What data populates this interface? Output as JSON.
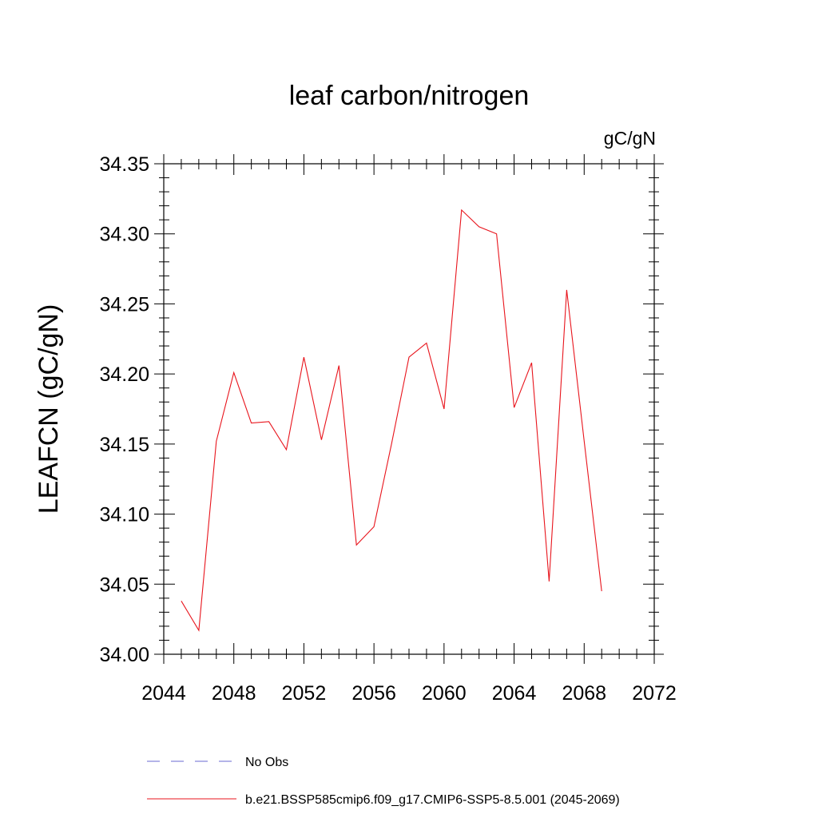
{
  "chart_data": {
    "type": "line",
    "title": "leaf carbon/nitrogen",
    "units_label": "gC/gN",
    "ylabel": "LEAFCN  (gC/gN)",
    "xlabel": "",
    "xlim": [
      2044,
      2072
    ],
    "ylim": [
      34.0,
      34.35
    ],
    "x_ticks": [
      2044,
      2048,
      2052,
      2056,
      2060,
      2064,
      2068,
      2072
    ],
    "x_tick_labels": [
      "2044",
      "2048",
      "2052",
      "2056",
      "2060",
      "2064",
      "2068",
      "2072"
    ],
    "y_ticks": [
      34.0,
      34.05,
      34.1,
      34.15,
      34.2,
      34.25,
      34.3,
      34.35
    ],
    "y_tick_labels": [
      "34.00",
      "34.05",
      "34.10",
      "34.15",
      "34.20",
      "34.25",
      "34.30",
      "34.35"
    ],
    "grid": false,
    "series": [
      {
        "name": "b.e21.BSSP585cmip6.f09_g17.CMIP6-SSP5-8.5.001 (2045-2069)",
        "color": "#e8141c",
        "x": [
          2045,
          2046,
          2047,
          2048,
          2049,
          2050,
          2051,
          2052,
          2053,
          2054,
          2055,
          2056,
          2057,
          2058,
          2059,
          2060,
          2061,
          2062,
          2063,
          2064,
          2065,
          2066,
          2067,
          2068,
          2069
        ],
        "y": [
          34.038,
          34.017,
          34.152,
          34.201,
          34.165,
          34.166,
          34.146,
          34.212,
          34.153,
          34.206,
          34.078,
          34.091,
          34.15,
          34.212,
          34.222,
          34.175,
          34.317,
          34.305,
          34.3,
          34.176,
          34.208,
          34.052,
          34.26,
          34.152,
          34.045
        ]
      }
    ],
    "legend": [
      {
        "label": "No Obs",
        "color": "#6a6ad0",
        "style": "dashed"
      },
      {
        "label": "b.e21.BSSP585cmip6.f09_g17.CMIP6-SSP5-8.5.001 (2045-2069)",
        "color": "#e8141c",
        "style": "solid"
      }
    ],
    "legend_position": "bottom"
  }
}
